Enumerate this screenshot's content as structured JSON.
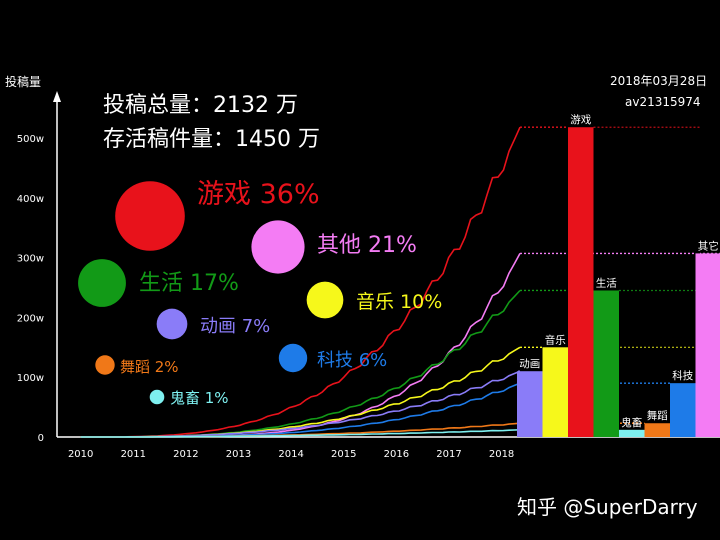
{
  "chart_data": {
    "type": "line",
    "ylabel": "投稿量",
    "summary_lines": [
      "投稿总量：2132 万",
      "存活稿件量：1450 万"
    ],
    "date_text": "2018年03月28日",
    "source_text": "av21315974",
    "watermark": "知乎 @SuperDarry",
    "x_ticks": [
      "2010",
      "2011",
      "2012",
      "2013",
      "2014",
      "2015",
      "2016",
      "2017",
      "2018"
    ],
    "y_ticks": [
      {
        "value": 0,
        "label": "0"
      },
      {
        "value": 100,
        "label": "100w"
      },
      {
        "value": 200,
        "label": "200w"
      },
      {
        "value": 300,
        "label": "300w"
      },
      {
        "value": 400,
        "label": "400w"
      },
      {
        "value": 500,
        "label": "500w"
      }
    ],
    "x_range": [
      2009.55,
      2018.35
    ],
    "ylim": [
      0,
      510
    ],
    "share_bubbles": [
      {
        "label": "游戏 36%",
        "percent": 36,
        "color": "#e8121b"
      },
      {
        "label": "其他 21%",
        "percent": 21,
        "color": "#f47cf4"
      },
      {
        "label": "生活 17%",
        "percent": 17,
        "color": "#129a17"
      },
      {
        "label": "音乐 10%",
        "percent": 10,
        "color": "#f6f81b"
      },
      {
        "label": "动画 7%",
        "percent": 7,
        "color": "#8a7cf8"
      },
      {
        "label": "科技 6%",
        "percent": 6,
        "color": "#1e7be8"
      },
      {
        "label": "舞蹈 2%",
        "percent": 2,
        "color": "#f07818"
      },
      {
        "label": "鬼畜 1%",
        "percent": 1,
        "color": "#7ef0f0"
      }
    ],
    "series": [
      {
        "name": "游戏",
        "color": "#e8121b",
        "final": 518,
        "exponent": 3.2
      },
      {
        "name": "其它",
        "color": "#f47cf4",
        "final": 307,
        "exponent": 4.5
      },
      {
        "name": "生活",
        "color": "#129a17",
        "final": 245,
        "exponent": 3.3
      },
      {
        "name": "音乐",
        "color": "#f6f81b",
        "final": 150,
        "exponent": 3.0
      },
      {
        "name": "动画",
        "color": "#8a7cf8",
        "final": 110,
        "exponent": 2.8
      },
      {
        "name": "科技",
        "color": "#1e7be8",
        "final": 90,
        "exponent": 3.4
      },
      {
        "name": "舞蹈",
        "color": "#f07818",
        "final": 23,
        "exponent": 2.6
      },
      {
        "name": "鬼畜",
        "color": "#7ef0f0",
        "final": 12,
        "exponent": 2.2
      }
    ],
    "bars": [
      {
        "label": "动画",
        "value": 110,
        "color": "#8a7cf8"
      },
      {
        "label": "音乐",
        "value": 150,
        "color": "#f6f81b"
      },
      {
        "label": "游戏",
        "value": 518,
        "color": "#e8121b"
      },
      {
        "label": "生活",
        "value": 245,
        "color": "#129a17"
      },
      {
        "label": "鬼畜",
        "value": 12,
        "color": "#7ef0f0"
      },
      {
        "label": "舞蹈",
        "value": 23,
        "color": "#f07818"
      },
      {
        "label": "科技",
        "value": 90,
        "color": "#1e7be8"
      },
      {
        "label": "其它",
        "value": 307,
        "color": "#f47cf4"
      }
    ]
  }
}
